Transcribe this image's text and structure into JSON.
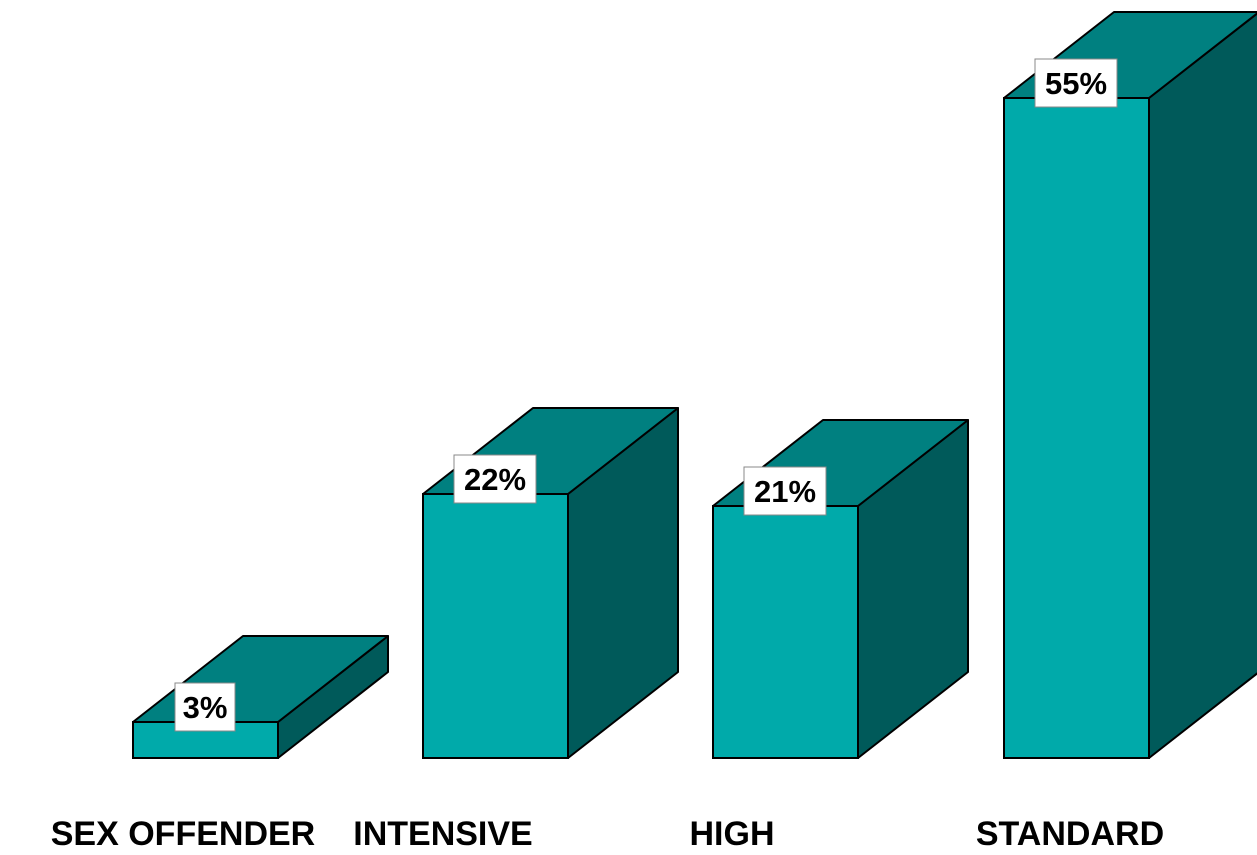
{
  "chart_data": {
    "type": "bar",
    "title": "",
    "xlabel": "",
    "ylabel": "",
    "categories": [
      "SEX OFFENDER",
      "INTENSIVE",
      "HIGH",
      "STANDARD"
    ],
    "values": [
      3,
      22,
      21,
      55
    ],
    "data_labels": [
      "3%",
      "22%",
      "21%",
      "55%"
    ],
    "ylim": [
      0,
      55
    ],
    "grid": false,
    "legend": "none",
    "style": "3d-columns",
    "colors": {
      "front": "#00aaaa",
      "top": "#008080",
      "side": "#005a5a",
      "outline": "#000000",
      "label_box": "#ffffff",
      "text": "#000000"
    }
  }
}
